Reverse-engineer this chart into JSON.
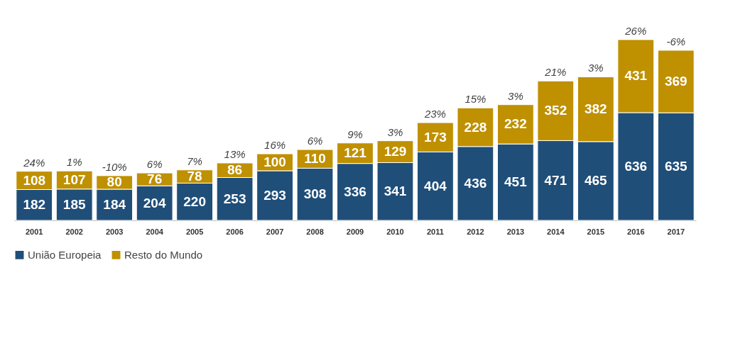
{
  "chart_data": {
    "type": "bar",
    "stacked": true,
    "data_labels": true,
    "legend": "bottom",
    "grid": false,
    "categories": [
      "2001",
      "2002",
      "2003",
      "2004",
      "2005",
      "2006",
      "2007",
      "2008",
      "2009",
      "2010",
      "2011",
      "2012",
      "2013",
      "2014",
      "2015",
      "2016",
      "2017"
    ],
    "series": [
      {
        "name": "União Europeia",
        "color": "#1f4e79",
        "values": [
          182,
          185,
          184,
          204,
          220,
          253,
          293,
          308,
          336,
          341,
          404,
          436,
          451,
          471,
          465,
          636,
          635
        ]
      },
      {
        "name": "Resto do Mundo",
        "color": "#bf9000",
        "values": [
          108,
          107,
          80,
          76,
          78,
          86,
          100,
          110,
          121,
          129,
          173,
          228,
          232,
          352,
          382,
          431,
          369
        ]
      }
    ],
    "annotations": [
      {
        "text": "24%",
        "x": "2001",
        "y": 290
      },
      {
        "text": "1%",
        "x": "2002",
        "y": 292
      },
      {
        "text": "-10%",
        "x": "2003",
        "y": 264
      },
      {
        "text": "6%",
        "x": "2004",
        "y": 280
      },
      {
        "text": "7%",
        "x": "2005",
        "y": 298
      },
      {
        "text": "13%",
        "x": "2006",
        "y": 339
      },
      {
        "text": "16%",
        "x": "2007",
        "y": 393
      },
      {
        "text": "6%",
        "x": "2008",
        "y": 418
      },
      {
        "text": "9%",
        "x": "2009",
        "y": 457
      },
      {
        "text": "3%",
        "x": "2010",
        "y": 470
      },
      {
        "text": "23%",
        "x": "2011",
        "y": 577
      },
      {
        "text": "15%",
        "x": "2012",
        "y": 664
      },
      {
        "text": "3%",
        "x": "2013",
        "y": 683
      },
      {
        "text": "21%",
        "x": "2014",
        "y": 823
      },
      {
        "text": "3%",
        "x": "2015",
        "y": 847
      },
      {
        "text": "26%",
        "x": "2016",
        "y": 1067
      },
      {
        "text": "-6%",
        "x": "2017",
        "y": 1004
      }
    ]
  }
}
